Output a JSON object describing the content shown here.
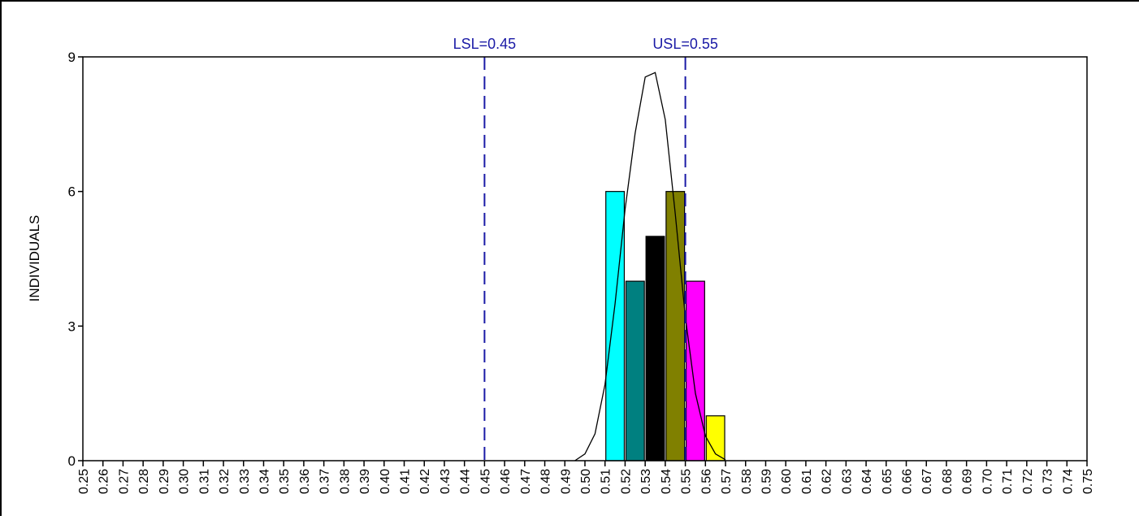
{
  "chart_data": {
    "type": "bar",
    "title": "",
    "xlabel": "",
    "ylabel": "INDIVIDUALS",
    "ylim": [
      0,
      9
    ],
    "yticks": [
      "0",
      "3",
      "6",
      "9"
    ],
    "xlim": [
      0.25,
      0.75
    ],
    "xticks": [
      "0.25",
      "0.26",
      "0.27",
      "0.28",
      "0.29",
      "0.30",
      "0.31",
      "0.32",
      "0.33",
      "0.34",
      "0.35",
      "0.36",
      "0.37",
      "0.38",
      "0.39",
      "0.40",
      "0.41",
      "0.42",
      "0.43",
      "0.44",
      "0.45",
      "0.46",
      "0.47",
      "0.48",
      "0.49",
      "0.50",
      "0.51",
      "0.52",
      "0.53",
      "0.54",
      "0.55",
      "0.56",
      "0.57",
      "0.58",
      "0.59",
      "0.60",
      "0.61",
      "0.62",
      "0.63",
      "0.64",
      "0.65",
      "0.66",
      "0.67",
      "0.68",
      "0.69",
      "0.70",
      "0.71",
      "0.72",
      "0.73",
      "0.74",
      "0.75"
    ],
    "bars": [
      {
        "from": 0.51,
        "to": 0.52,
        "value": 6,
        "color": "#00ffff"
      },
      {
        "from": 0.52,
        "to": 0.53,
        "value": 4,
        "color": "#008080"
      },
      {
        "from": 0.53,
        "to": 0.54,
        "value": 5,
        "color": "#000000"
      },
      {
        "from": 0.54,
        "to": 0.55,
        "value": 6,
        "color": "#808000"
      },
      {
        "from": 0.55,
        "to": 0.56,
        "value": 4,
        "color": "#ff00ff"
      },
      {
        "from": 0.56,
        "to": 0.57,
        "value": 1,
        "color": "#ffff00"
      }
    ],
    "normal_curve": {
      "x": [
        0.495,
        0.5,
        0.505,
        0.51,
        0.515,
        0.52,
        0.525,
        0.53,
        0.535,
        0.54,
        0.545,
        0.55,
        0.555,
        0.56,
        0.565,
        0.57
      ],
      "y": [
        0.0,
        0.15,
        0.6,
        1.7,
        3.5,
        5.6,
        7.3,
        8.55,
        8.65,
        7.6,
        5.5,
        3.2,
        1.5,
        0.55,
        0.15,
        0.02
      ],
      "color": "#000000"
    },
    "spec_limits": [
      {
        "label": "LSL=0.45",
        "value": 0.45,
        "color": "#1a1aa6"
      },
      {
        "label": "USL=0.55",
        "value": 0.55,
        "color": "#1a1aa6"
      }
    ],
    "grid": false,
    "legend": "none"
  }
}
